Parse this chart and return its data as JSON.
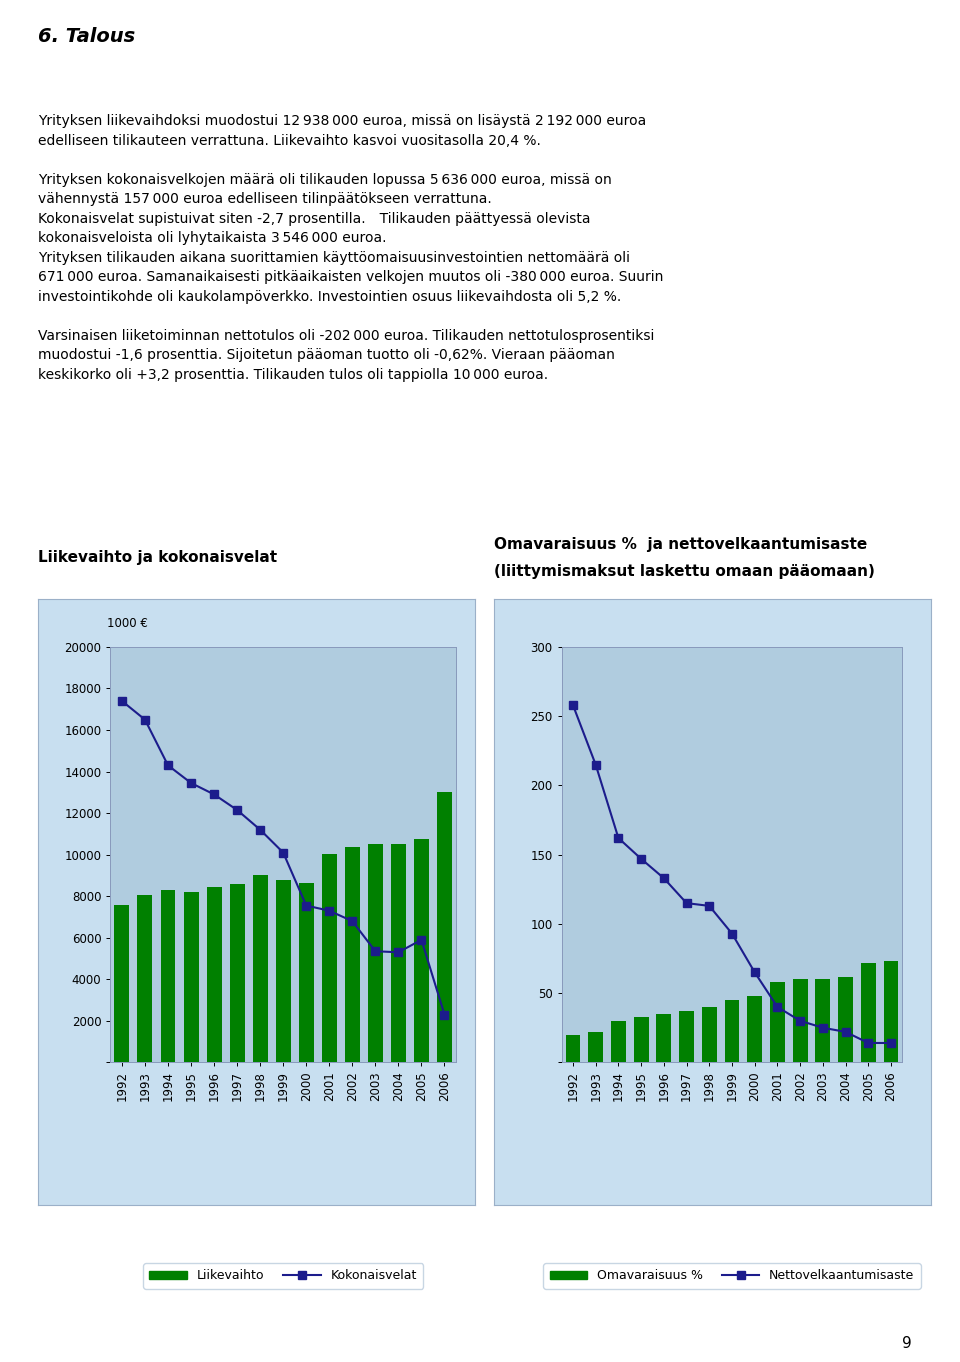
{
  "years": [
    1992,
    1993,
    1994,
    1995,
    1996,
    1997,
    1998,
    1999,
    2000,
    2001,
    2002,
    2003,
    2004,
    2005,
    2006
  ],
  "liikevaihto": [
    7600,
    8050,
    8300,
    8200,
    8450,
    8600,
    9000,
    8800,
    8650,
    10050,
    10350,
    10500,
    10500,
    10750,
    13000
  ],
  "kokonaisvelat": [
    17400,
    16500,
    14300,
    13450,
    12900,
    12150,
    11200,
    10100,
    7550,
    7300,
    6800,
    5350,
    5300,
    5900,
    2300
  ],
  "omavaraisuus": [
    20,
    22,
    30,
    33,
    35,
    37,
    40,
    45,
    48,
    58,
    60,
    60,
    62,
    72,
    73
  ],
  "nettovelkaantumisaste": [
    258,
    215,
    162,
    147,
    133,
    115,
    113,
    93,
    65,
    40,
    30,
    25,
    22,
    14,
    14
  ],
  "chart1_title": "Liikevaihto ja kokonaisvelat",
  "chart2_title_line1": "Omavaraisuus %  ja nettovelkaantumisaste",
  "chart2_title_line2": "(liittymismaksut laskettu omaan pääomaan)",
  "chart1_ylabel": "1000 €",
  "chart1_ylim": [
    0,
    20000
  ],
  "chart1_yticks": [
    0,
    2000,
    4000,
    6000,
    8000,
    10000,
    12000,
    14000,
    16000,
    18000,
    20000
  ],
  "chart2_ylim": [
    0,
    300
  ],
  "chart2_yticks": [
    0,
    50,
    100,
    150,
    200,
    250,
    300
  ],
  "bar_color": "#008000",
  "line_color": "#1C1C8C",
  "outer_bg": "#c8dff0",
  "inner_bg": "#b0ccdf",
  "legend1_bar": "Liikevaihto",
  "legend1_line": "Kokonaisvelat",
  "legend2_bar": "Omavaraisuus %",
  "legend2_line": "Nettovelkaantumisaste",
  "title_fontsize": 11,
  "tick_fontsize": 8.5,
  "legend_fontsize": 9
}
